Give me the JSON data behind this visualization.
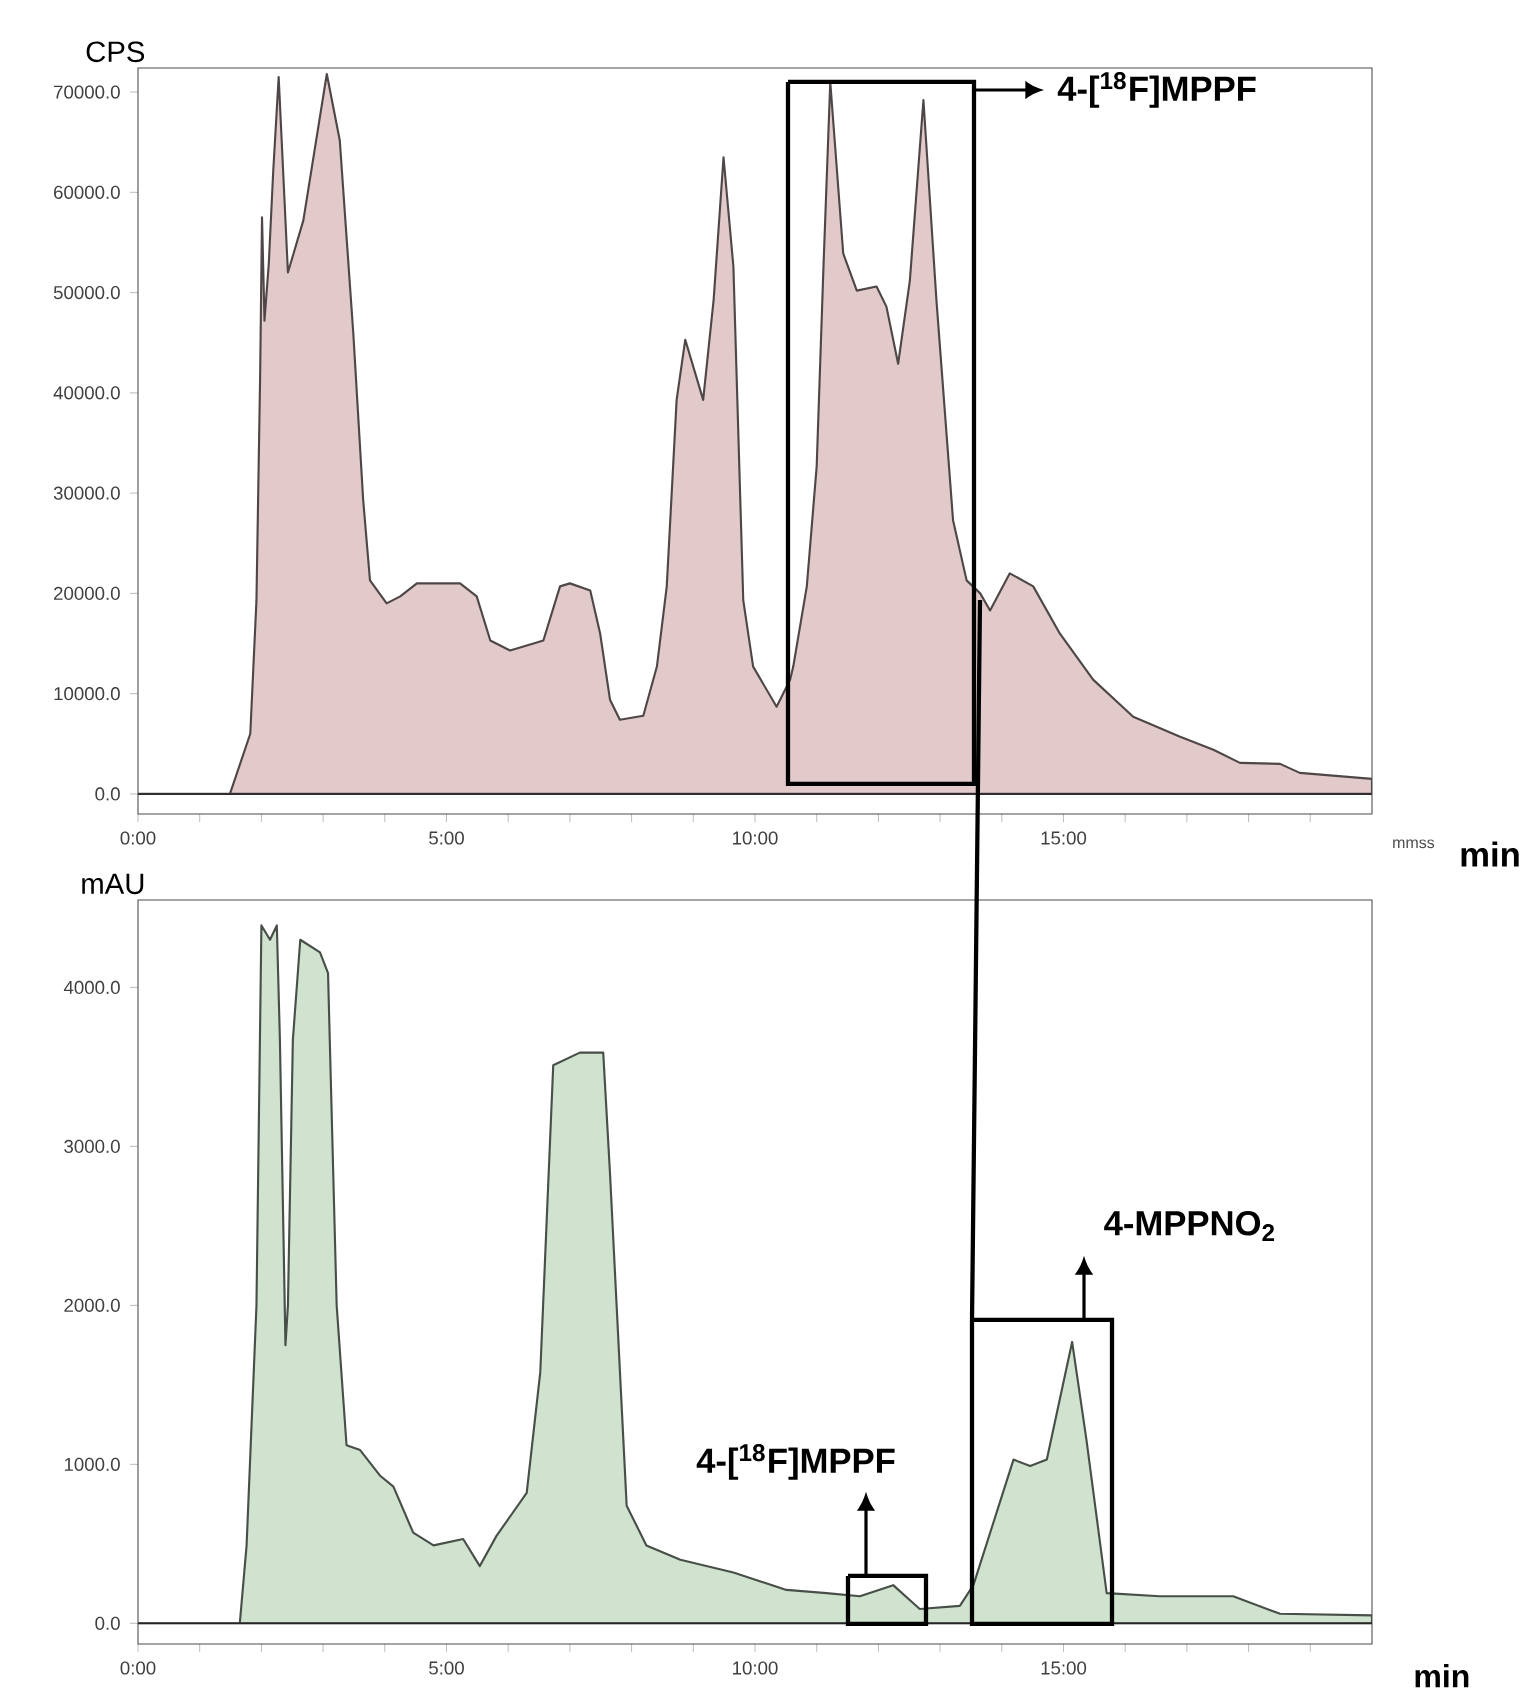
{
  "chart_data": [
    {
      "type": "area",
      "ylabel": "CPS",
      "xlabel": "mmss",
      "color": "#e2caca",
      "marker": "none",
      "x": [
        0,
        1.49,
        1.82,
        1.92,
        1.98,
        2.01,
        2.05,
        2.12,
        2.19,
        2.28,
        2.43,
        2.68,
        3.06,
        3.27,
        3.49,
        3.65,
        3.76,
        4.03,
        4.25,
        4.52,
        5.22,
        5.49,
        5.71,
        6.03,
        6.41,
        6.57,
        6.84,
        7.0,
        7.33,
        7.49,
        7.65,
        7.81,
        8.19,
        8.41,
        8.57,
        8.73,
        8.87,
        9.16,
        9.33,
        9.49,
        9.65,
        9.81,
        9.97,
        10.35,
        10.57,
        10.62,
        10.84,
        11.0,
        11.11,
        11.22,
        11.43,
        11.65,
        11.97,
        12.13,
        12.32,
        12.51,
        12.73,
        12.94,
        13.21,
        13.43,
        13.65,
        13.81,
        14.13,
        14.51,
        14.94,
        15.48,
        16.13,
        16.89,
        17.43,
        17.86,
        18.51,
        18.83,
        20.0
      ],
      "values": [
        0,
        0,
        6000,
        19300,
        41900,
        57500,
        47200,
        52900,
        61900,
        71500,
        52000,
        57200,
        71800,
        65200,
        45900,
        29300,
        21300,
        19000,
        19700,
        21000,
        21000,
        19700,
        15300,
        14300,
        15000,
        15300,
        20700,
        21000,
        20300,
        16000,
        9400,
        7400,
        7800,
        12700,
        20700,
        39300,
        45300,
        39300,
        49300,
        63500,
        52600,
        19300,
        12700,
        8700,
        11400,
        12700,
        20700,
        32700,
        52600,
        71000,
        53900,
        50200,
        50600,
        48600,
        42900,
        51200,
        69200,
        49300,
        27300,
        21300,
        20000,
        18300,
        22000,
        20700,
        16000,
        11400,
        7700,
        5700,
        4400,
        3100,
        3000,
        2100,
        1500
      ],
      "xlim": [
        0,
        20
      ],
      "ylim": [
        -2000,
        72400
      ],
      "xticks": [
        {
          "value": 0,
          "label": "0:00"
        },
        {
          "value": 1,
          "label": null
        },
        {
          "value": 2,
          "label": null
        },
        {
          "value": 3,
          "label": null
        },
        {
          "value": 4,
          "label": null
        },
        {
          "value": 5,
          "label": "5:00"
        },
        {
          "value": 6,
          "label": null
        },
        {
          "value": 7,
          "label": null
        },
        {
          "value": 8,
          "label": null
        },
        {
          "value": 9,
          "label": null
        },
        {
          "value": 10,
          "label": "10:00"
        },
        {
          "value": 11,
          "label": null
        },
        {
          "value": 12,
          "label": null
        },
        {
          "value": 13,
          "label": null
        },
        {
          "value": 14,
          "label": null
        },
        {
          "value": 15,
          "label": "15:00"
        },
        {
          "value": 16,
          "label": null
        },
        {
          "value": 17,
          "label": null
        },
        {
          "value": 18,
          "label": null
        },
        {
          "value": 19,
          "label": null
        }
      ],
      "yticks": [
        {
          "value": 0,
          "label": "0.0"
        },
        {
          "value": 10000,
          "label": "10000.0"
        },
        {
          "value": 20000,
          "label": "20000.0"
        },
        {
          "value": 30000,
          "label": "30000.0"
        },
        {
          "value": 40000,
          "label": "40000.0"
        },
        {
          "value": 50000,
          "label": "50000.0"
        },
        {
          "value": 60000,
          "label": "60000.0"
        },
        {
          "value": 70000,
          "label": "70000.0"
        }
      ],
      "ref_lines": [
        {
          "axis": "y",
          "value": 0
        }
      ],
      "annotations": [
        "4-[$^{18}$F]MPPF",
        "min"
      ]
    },
    {
      "type": "area",
      "ylabel": "mAU",
      "xlabel": "min",
      "color": "#cfe3cf",
      "marker": "none",
      "x": [
        0,
        1.65,
        1.76,
        1.92,
        2.0,
        2.14,
        2.25,
        2.3,
        2.39,
        2.43,
        2.51,
        2.63,
        2.95,
        3.08,
        3.22,
        3.38,
        3.6,
        3.92,
        4.14,
        4.46,
        4.79,
        5.27,
        5.54,
        5.81,
        6.3,
        6.52,
        6.73,
        7.16,
        7.54,
        7.65,
        7.92,
        8.24,
        8.79,
        9.65,
        10.51,
        11.16,
        11.7,
        12.24,
        12.67,
        13.32,
        13.54,
        14.19,
        14.46,
        14.73,
        15.14,
        15.37,
        15.7,
        16.56,
        17.75,
        18.51,
        20.0
      ],
      "values": [
        0,
        0,
        490,
        2000,
        4390,
        4300,
        4390,
        3670,
        1750,
        2000,
        3670,
        4300,
        4220,
        4090,
        2000,
        1120,
        1090,
        930,
        860,
        570,
        490,
        530,
        360,
        550,
        820,
        1580,
        3510,
        3590,
        3590,
        2830,
        740,
        490,
        400,
        320,
        210,
        190,
        170,
        240,
        90,
        110,
        240,
        1030,
        990,
        1030,
        1770,
        1160,
        190,
        170,
        170,
        60,
        50
      ],
      "xlim": [
        0,
        20
      ],
      "ylim": [
        -130,
        4550
      ],
      "xticks": [
        {
          "value": 0,
          "label": "0:00"
        },
        {
          "value": 1,
          "label": null
        },
        {
          "value": 2,
          "label": null
        },
        {
          "value": 3,
          "label": null
        },
        {
          "value": 4,
          "label": null
        },
        {
          "value": 5,
          "label": "5:00"
        },
        {
          "value": 6,
          "label": null
        },
        {
          "value": 7,
          "label": null
        },
        {
          "value": 8,
          "label": null
        },
        {
          "value": 9,
          "label": null
        },
        {
          "value": 10,
          "label": "10:00"
        },
        {
          "value": 11,
          "label": null
        },
        {
          "value": 12,
          "label": null
        },
        {
          "value": 13,
          "label": null
        },
        {
          "value": 14,
          "label": null
        },
        {
          "value": 15,
          "label": "15:00"
        },
        {
          "value": 16,
          "label": null
        },
        {
          "value": 17,
          "label": null
        },
        {
          "value": 18,
          "label": null
        },
        {
          "value": 19,
          "label": null
        }
      ],
      "yticks": [
        {
          "value": 0,
          "label": "0.0"
        },
        {
          "value": 1000,
          "label": "1000.0"
        },
        {
          "value": 2000,
          "label": "2000.0"
        },
        {
          "value": 3000,
          "label": "3000.0"
        },
        {
          "value": 4000,
          "label": "4000.0"
        }
      ],
      "ref_lines": [
        {
          "axis": "y",
          "value": 0
        }
      ],
      "annotations": [
        "4-[$^{18}$F]MPPF",
        "4-MPPNO$_{2}$"
      ]
    }
  ]
}
